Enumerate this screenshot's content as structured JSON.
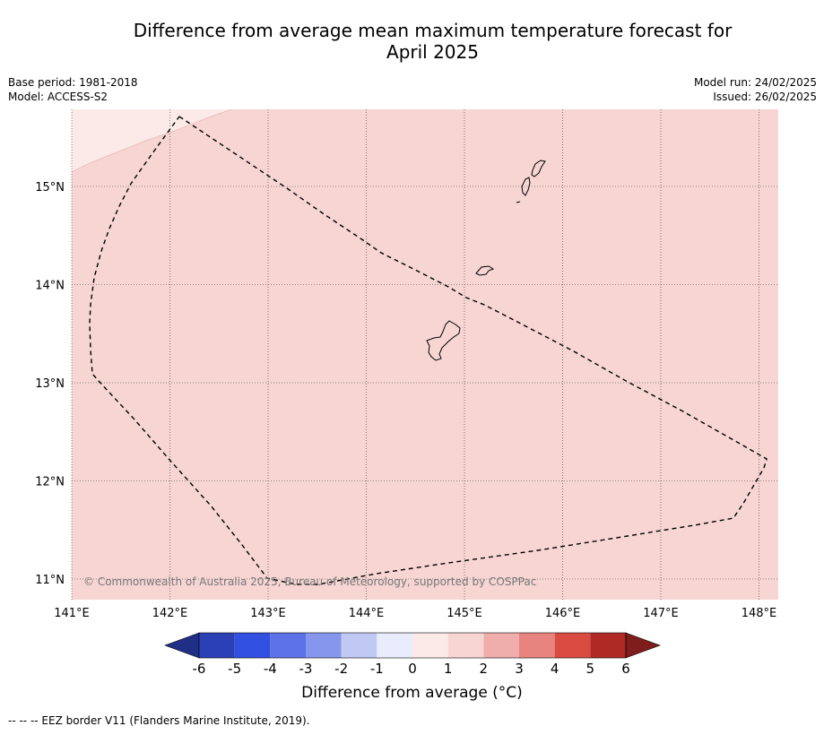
{
  "title": {
    "line1": "Difference from average mean maximum temperature forecast for",
    "line2": "April 2025"
  },
  "meta_left": {
    "base_period": "Base period: 1981-2018",
    "model": "Model: ACCESS-S2"
  },
  "meta_right": {
    "model_run": "Model run: 24/02/2025",
    "issued": "Issued: 26/02/2025"
  },
  "map": {
    "lon_labels": [
      "141°E",
      "142°E",
      "143°E",
      "144°E",
      "145°E",
      "146°E",
      "147°E",
      "148°E"
    ],
    "lat_labels": [
      "15°N",
      "14°N",
      "13°N",
      "12°N",
      "11°N"
    ],
    "lon_range": [
      141.0,
      148.2
    ],
    "lat_range": [
      10.8,
      15.8
    ],
    "background_category": "1 to 2",
    "copyright": "© Commonwealth of Australia 2025, Bureau of Meteorology, supported by COSPPac"
  },
  "colorbar": {
    "ticks": [
      "-6",
      "-5",
      "-4",
      "-3",
      "-2",
      "-1",
      "0",
      "1",
      "2",
      "3",
      "4",
      "5",
      "6"
    ],
    "colors": [
      "#1f2f86",
      "#2a40b4",
      "#3150e0",
      "#5c72e6",
      "#8596ec",
      "#c0c8f4",
      "#e8ecfc",
      "#fbeae8",
      "#f6d5d3",
      "#efaeac",
      "#e8847f",
      "#da4b42",
      "#b02a25",
      "#7f1d1c"
    ],
    "label": "Difference from average (°C)"
  },
  "footnote": "--  --  -- EEZ border V11 (Flanders Marine Institute, 2019)."
}
